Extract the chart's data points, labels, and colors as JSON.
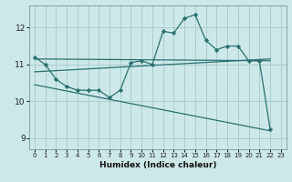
{
  "title": "",
  "xlabel": "Humidex (Indice chaleur)",
  "background_color": "#cce8e8",
  "grid_color": "#aacccc",
  "line_color": "#2a7070",
  "xlim": [
    -0.5,
    23.5
  ],
  "ylim": [
    8.7,
    12.6
  ],
  "yticks": [
    9,
    10,
    11,
    12
  ],
  "xticks": [
    0,
    1,
    2,
    3,
    4,
    5,
    6,
    7,
    8,
    9,
    10,
    11,
    12,
    13,
    14,
    15,
    16,
    17,
    18,
    19,
    20,
    21,
    22,
    23
  ],
  "series1_x": [
    0,
    1,
    2,
    3,
    4,
    5,
    6,
    7,
    8,
    9,
    10,
    11,
    12,
    13,
    14,
    15,
    16,
    17,
    18,
    19,
    20,
    21,
    22
  ],
  "series1_y": [
    11.2,
    11.0,
    10.6,
    10.4,
    10.3,
    10.3,
    10.3,
    10.1,
    10.3,
    11.05,
    11.1,
    11.0,
    11.9,
    11.85,
    12.25,
    12.35,
    11.65,
    11.4,
    11.5,
    11.5,
    11.1,
    11.1,
    9.25
  ],
  "series2_x": [
    0,
    22
  ],
  "series2_y": [
    11.15,
    11.1
  ],
  "series3_x": [
    0,
    22
  ],
  "series3_y": [
    10.8,
    11.15
  ],
  "series4_x": [
    0,
    22
  ],
  "series4_y": [
    10.45,
    9.2
  ]
}
